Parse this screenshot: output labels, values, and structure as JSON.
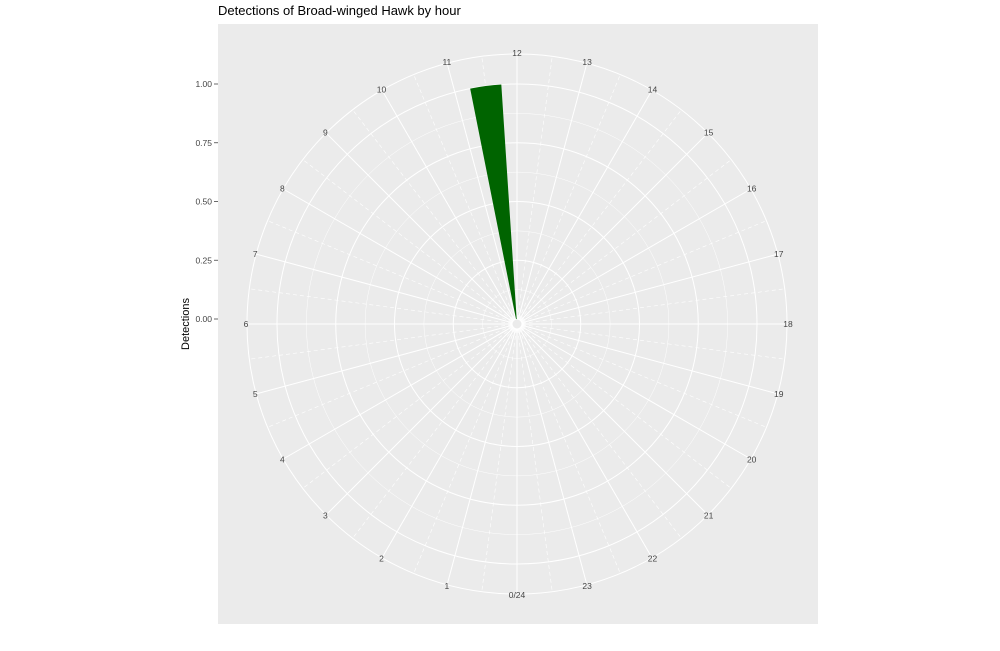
{
  "chart_data": {
    "type": "bar",
    "coord": "polar",
    "title": "Detections of Broad-winged Hawk by hour",
    "xlabel": "",
    "ylabel": "Detections",
    "categories": [
      "0/24",
      "1",
      "2",
      "3",
      "4",
      "5",
      "6",
      "7",
      "8",
      "9",
      "10",
      "11",
      "12",
      "13",
      "14",
      "15",
      "16",
      "17",
      "18",
      "19",
      "20",
      "21",
      "22",
      "23"
    ],
    "x": [
      11.5
    ],
    "values": [
      1.0
    ],
    "bar_width_hours": 0.5,
    "ylim": [
      0,
      1
    ],
    "y_ticks": [
      "0.00",
      "0.25",
      "0.50",
      "0.75",
      "1.00"
    ],
    "grid": true,
    "legend": "none",
    "colors": {
      "bar": "#006400",
      "panel": "#ebebeb",
      "grid": "#ffffff"
    }
  }
}
